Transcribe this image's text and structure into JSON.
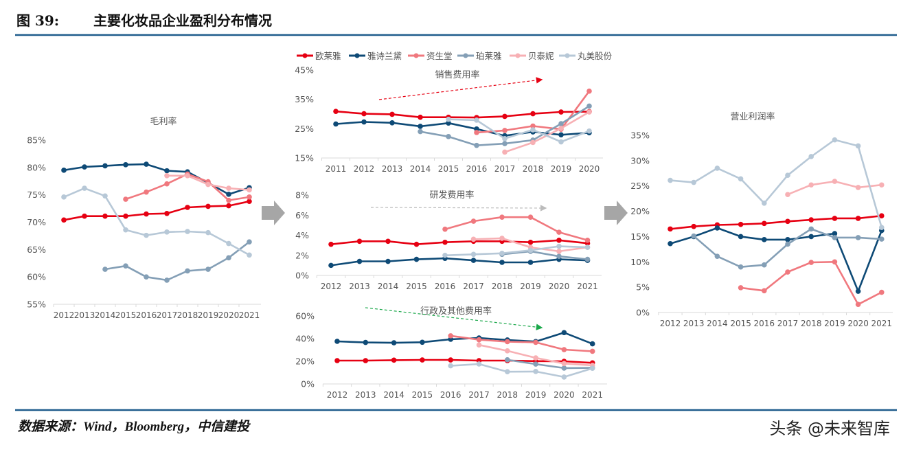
{
  "header": {
    "figure_no": "图 39:",
    "title": "主要化妆品企业盈利分布情况"
  },
  "footer": {
    "source": "数据来源：Wind，Bloomberg，中信建投",
    "watermark": "头条 @未来智库"
  },
  "legend": [
    {
      "name": "欧莱雅",
      "color": "#e60012"
    },
    {
      "name": "雅诗兰黛",
      "color": "#0e4a76"
    },
    {
      "name": "资生堂",
      "color": "#f0787e"
    },
    {
      "name": "珀莱雅",
      "color": "#849fb6"
    },
    {
      "name": "贝泰妮",
      "color": "#f7b0b4"
    },
    {
      "name": "丸美股份",
      "color": "#b7c8d7"
    }
  ],
  "chart_data": [
    {
      "type": "line",
      "title": "毛利率",
      "categories": [
        "2012",
        "2013",
        "2014",
        "2015",
        "2016",
        "2017",
        "2018",
        "2019",
        "2020",
        "2021"
      ],
      "ylim": [
        55,
        85
      ],
      "yticks": [
        55,
        60,
        65,
        70,
        75,
        80,
        85
      ],
      "ytick_suffix": "%",
      "grid": false,
      "series": [
        {
          "name": "欧莱雅",
          "values": [
            70.4,
            71.1,
            71.1,
            71.1,
            71.5,
            71.6,
            72.7,
            72.9,
            73.0,
            73.8
          ]
        },
        {
          "name": "雅诗兰黛",
          "values": [
            79.5,
            80.1,
            80.3,
            80.5,
            80.6,
            79.4,
            79.2,
            77.2,
            75.1,
            76.3
          ]
        },
        {
          "name": "资生堂",
          "values": [
            null,
            null,
            null,
            74.2,
            75.5,
            77.0,
            78.8,
            77.4,
            74.0,
            74.6
          ]
        },
        {
          "name": "珀莱雅",
          "values": [
            null,
            null,
            61.4,
            62.0,
            60.0,
            59.4,
            61.1,
            61.4,
            63.5,
            66.4
          ]
        },
        {
          "name": "贝泰妮",
          "values": [
            null,
            null,
            null,
            null,
            null,
            78.5,
            78.5,
            76.9,
            76.2,
            75.9
          ]
        },
        {
          "name": "丸美股份",
          "values": [
            74.6,
            76.2,
            74.8,
            68.6,
            67.6,
            68.2,
            68.3,
            68.1,
            66.1,
            64.0
          ]
        }
      ]
    },
    {
      "type": "line",
      "title": "销售费用率",
      "categories": [
        "2011",
        "2012",
        "2013",
        "2014",
        "2015",
        "2016",
        "2017",
        "2018",
        "2019",
        "2020"
      ],
      "ylim": [
        15,
        45
      ],
      "yticks": [
        15,
        25,
        35,
        45
      ],
      "ytick_suffix": "%",
      "grid": false,
      "trend": "up",
      "series": [
        {
          "name": "欧莱雅",
          "values": [
            30.9,
            30.1,
            29.9,
            28.9,
            28.9,
            28.8,
            29.2,
            30.1,
            30.7,
            30.8
          ]
        },
        {
          "name": "雅诗兰黛",
          "values": [
            26.6,
            27.3,
            27.0,
            25.8,
            26.9,
            24.9,
            22.6,
            23.9,
            22.9,
            23.6
          ]
        },
        {
          "name": "资生堂",
          "values": [
            null,
            null,
            null,
            null,
            null,
            23.7,
            24.4,
            25.9,
            24.8,
            37.8
          ]
        },
        {
          "name": "珀莱雅",
          "values": [
            null,
            null,
            null,
            24.0,
            22.3,
            19.3,
            19.9,
            21.1,
            26.7,
            32.7
          ]
        },
        {
          "name": "贝泰妮",
          "values": [
            null,
            null,
            null,
            null,
            null,
            null,
            17.0,
            20.3,
            25.1,
            30.7
          ]
        },
        {
          "name": "丸美股份",
          "values": [
            null,
            null,
            null,
            null,
            28.2,
            27.9,
            21.6,
            24.6,
            20.5,
            24.2
          ]
        }
      ]
    },
    {
      "type": "line",
      "title": "研发费用率",
      "categories": [
        "2012",
        "2013",
        "2014",
        "2015",
        "2016",
        "2017",
        "2018",
        "2019",
        "2020",
        "2021"
      ],
      "ylim": [
        0,
        8
      ],
      "yticks": [
        0,
        2,
        4,
        6,
        8
      ],
      "ytick_suffix": "%",
      "grid": false,
      "trend": "flat",
      "series": [
        {
          "name": "欧莱雅",
          "values": [
            3.1,
            3.4,
            3.4,
            3.1,
            3.3,
            3.4,
            3.4,
            3.3,
            3.5,
            3.2
          ]
        },
        {
          "name": "雅诗兰黛",
          "values": [
            1.0,
            1.4,
            1.4,
            1.6,
            1.7,
            1.5,
            1.3,
            1.3,
            1.6,
            1.5
          ]
        },
        {
          "name": "资生堂",
          "values": [
            null,
            null,
            null,
            null,
            4.6,
            5.4,
            5.8,
            5.8,
            4.3,
            3.5
          ]
        },
        {
          "name": "珀莱雅",
          "values": [
            null,
            null,
            null,
            null,
            null,
            null,
            2.1,
            2.4,
            1.9,
            1.6
          ]
        },
        {
          "name": "贝泰妮",
          "values": [
            null,
            null,
            null,
            null,
            null,
            3.6,
            3.7,
            2.8,
            2.4,
            2.8
          ]
        },
        {
          "name": "丸美股份",
          "values": [
            null,
            null,
            null,
            null,
            2.0,
            2.1,
            2.2,
            2.5,
            2.9,
            2.8
          ]
        }
      ]
    },
    {
      "type": "line",
      "title": "行政及其他费用率",
      "categories": [
        "2012",
        "2013",
        "2014",
        "2015",
        "2016",
        "2017",
        "2018",
        "2019",
        "2020",
        "2021"
      ],
      "ylim": [
        0,
        60
      ],
      "yticks": [
        0,
        20,
        40,
        60
      ],
      "ytick_suffix": "%",
      "grid": false,
      "trend": "down",
      "series": [
        {
          "name": "欧莱雅",
          "values": [
            20.6,
            20.6,
            21.0,
            21.2,
            21.2,
            20.6,
            20.6,
            20.1,
            20.0,
            18.6
          ]
        },
        {
          "name": "雅诗兰黛",
          "values": [
            37.6,
            36.6,
            36.3,
            36.8,
            39.4,
            40.6,
            38.8,
            37.4,
            45.3,
            35.4
          ]
        },
        {
          "name": "资生堂",
          "values": [
            null,
            null,
            null,
            null,
            42.5,
            39.0,
            37.3,
            36.7,
            30.3,
            28.8
          ]
        },
        {
          "name": "珀莱雅",
          "values": [
            null,
            null,
            null,
            null,
            null,
            null,
            21.3,
            17.5,
            14.0,
            14.2
          ]
        },
        {
          "name": "贝泰妮",
          "values": [
            null,
            null,
            null,
            null,
            null,
            34.4,
            29.2,
            23.0,
            18.0,
            16.4
          ]
        },
        {
          "name": "丸美股份",
          "values": [
            null,
            null,
            null,
            null,
            16.0,
            17.6,
            10.8,
            11.0,
            6.1,
            13.8
          ]
        }
      ]
    },
    {
      "type": "line",
      "title": "营业利润率",
      "categories": [
        "2012",
        "2013",
        "2014",
        "2015",
        "2016",
        "2017",
        "2018",
        "2019",
        "2020",
        "2021"
      ],
      "ylim": [
        0,
        35
      ],
      "yticks": [
        0,
        5,
        10,
        15,
        20,
        25,
        30,
        35
      ],
      "ytick_suffix": "%",
      "grid": false,
      "series": [
        {
          "name": "欧莱雅",
          "values": [
            16.5,
            17.0,
            17.3,
            17.4,
            17.6,
            18.0,
            18.3,
            18.6,
            18.6,
            19.1
          ]
        },
        {
          "name": "雅诗兰黛",
          "values": [
            13.6,
            15.0,
            16.7,
            15.0,
            14.4,
            14.4,
            15.0,
            15.6,
            4.2,
            16.2
          ]
        },
        {
          "name": "资生堂",
          "values": [
            null,
            null,
            null,
            4.9,
            4.3,
            8.0,
            9.9,
            10.0,
            1.6,
            4.0
          ]
        },
        {
          "name": "珀莱雅",
          "values": [
            null,
            15.1,
            11.1,
            9.0,
            9.4,
            13.5,
            16.5,
            14.8,
            14.8,
            14.5
          ]
        },
        {
          "name": "贝泰妮",
          "values": [
            null,
            null,
            null,
            null,
            null,
            23.3,
            25.2,
            25.9,
            24.7,
            25.2
          ]
        },
        {
          "name": "丸美股份",
          "values": [
            26.1,
            25.7,
            28.5,
            26.4,
            21.6,
            27.1,
            30.8,
            34.1,
            32.9,
            16.8
          ]
        }
      ]
    }
  ]
}
